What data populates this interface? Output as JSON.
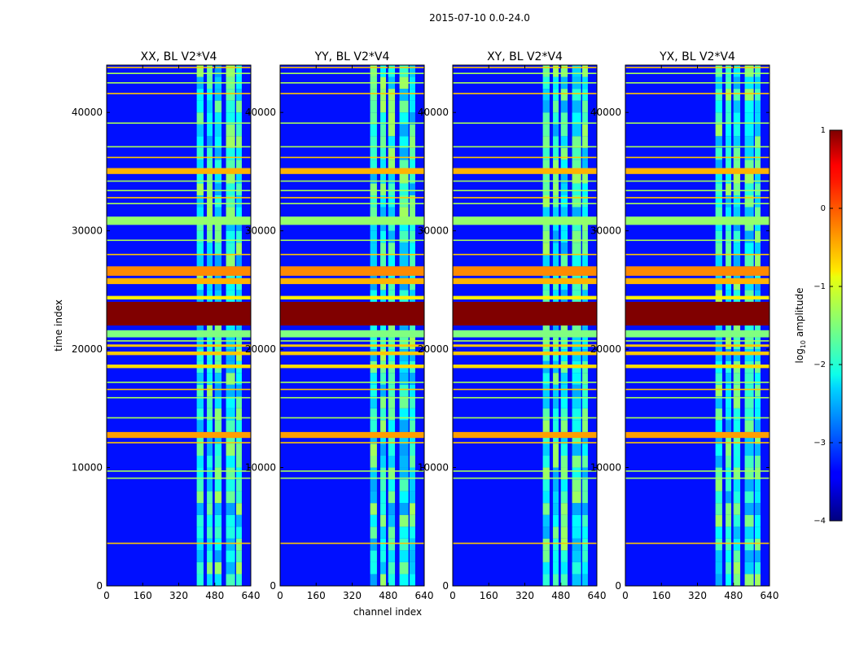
{
  "figure_title": "2015-07-10 0.0-24.0",
  "chart_data": {
    "type": "heatmap",
    "title": "2015-07-10 0.0-24.0",
    "xlabel": "channel index",
    "ylabel": "time index",
    "xlim": [
      0,
      640
    ],
    "ylim": [
      0,
      44000
    ],
    "xticks": [
      0,
      160,
      320,
      480,
      640
    ],
    "yticks": [
      0,
      10000,
      20000,
      30000,
      40000
    ],
    "panels": [
      {
        "title": "XX, BL V2*V4",
        "polarization": "XX"
      },
      {
        "title": "YY, BL V2*V4",
        "polarization": "YY"
      },
      {
        "title": "XY, BL V2*V4",
        "polarization": "XY"
      },
      {
        "title": "YX, BL V2*V4",
        "polarization": "YX"
      }
    ],
    "colorbar": {
      "label": "log10 amplitude",
      "label_main": "log",
      "label_sub": "10",
      "label_rest": " amplitude",
      "range": [
        -4,
        1
      ],
      "ticks": [
        1,
        0,
        -1,
        -2,
        -3,
        -4
      ],
      "tick_labels": [
        "1",
        "0",
        "−1",
        "−2",
        "−3",
        "−4"
      ],
      "colormap": "jet"
    },
    "background_log_amplitude": -3.3,
    "rfi_channel_bands": [
      [
        400,
        430
      ],
      [
        445,
        470
      ],
      [
        480,
        510
      ],
      [
        530,
        570
      ],
      [
        575,
        600
      ]
    ],
    "bright_time_bands": [
      {
        "t0": 30500,
        "t1": 31200,
        "value": -1.4
      },
      {
        "t0": 26200,
        "t1": 27000,
        "value": -0.3
      },
      {
        "t0": 25500,
        "t1": 26000,
        "value": -0.5
      },
      {
        "t0": 24200,
        "t1": 24500,
        "value": -0.8
      },
      {
        "t0": 22000,
        "t1": 24000,
        "value": 1.0
      },
      {
        "t0": 21000,
        "t1": 21600,
        "value": -1.5
      },
      {
        "t0": 34800,
        "t1": 35300,
        "value": -0.5
      },
      {
        "t0": 12500,
        "t1": 13000,
        "value": -0.4
      },
      {
        "t0": 18400,
        "t1": 18700,
        "value": -0.7
      },
      {
        "t0": 19500,
        "t1": 19800,
        "value": -0.6
      },
      {
        "t0": 20200,
        "t1": 20400,
        "value": -0.6
      }
    ],
    "thin_time_lines": [
      3600,
      9100,
      9700,
      12100,
      14200,
      15900,
      16600,
      17200,
      20700,
      28000,
      29200,
      32300,
      32800,
      33400,
      34200,
      36200,
      37100,
      39100,
      41600,
      42500,
      43300,
      43800
    ]
  }
}
